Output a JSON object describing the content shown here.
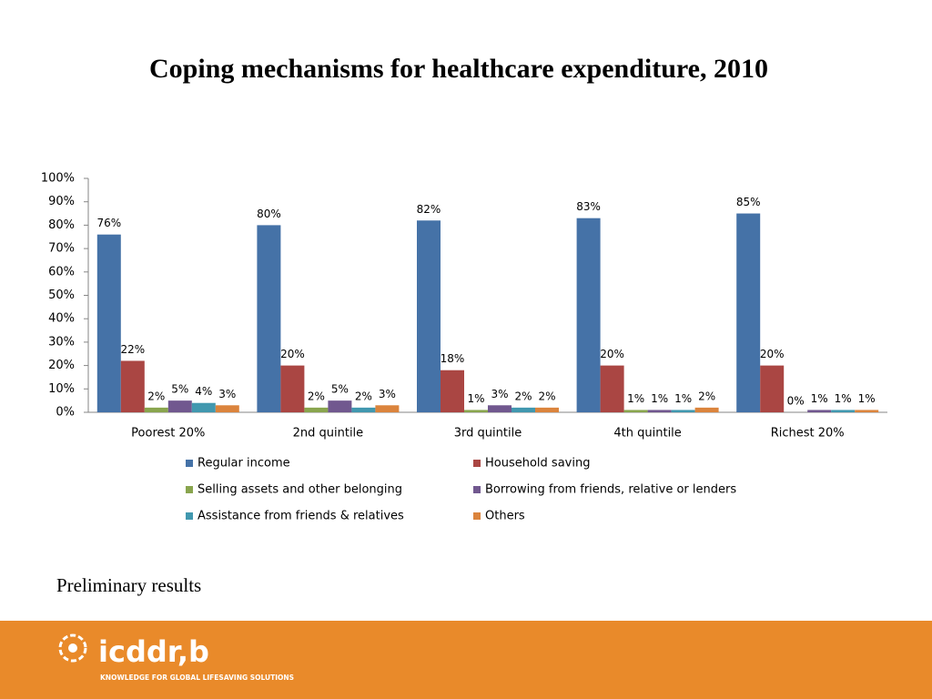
{
  "chart_data": {
    "type": "bar",
    "title": "Coping mechanisms for healthcare expenditure, 2010",
    "categories": [
      "Poorest 20%",
      "2nd quintile",
      "3rd quintile",
      "4th quintile",
      "Richest 20%"
    ],
    "series": [
      {
        "name": "Regular income",
        "color": "#4572a7",
        "values": [
          76,
          80,
          82,
          83,
          85
        ],
        "value_labels": [
          "76%",
          "80%",
          "82%",
          "83%",
          "85%"
        ]
      },
      {
        "name": "Household saving",
        "color": "#aa4643",
        "values": [
          22,
          20,
          18,
          20,
          20
        ],
        "value_labels": [
          "22%",
          "20%",
          "18%",
          "20%",
          "20%"
        ]
      },
      {
        "name": "Selling assets and other belonging",
        "color": "#89a54e",
        "values": [
          2,
          2,
          1,
          1,
          0
        ],
        "value_labels": [
          "2%",
          "2%",
          "1%",
          "1%",
          "0%"
        ]
      },
      {
        "name": "Borrowing from friends, relative or lenders",
        "color": "#71588f",
        "values": [
          5,
          5,
          3,
          1,
          1
        ],
        "value_labels": [
          "5%",
          "5%",
          "3%",
          "1%",
          "1%"
        ]
      },
      {
        "name": "Assistance from friends & relatives",
        "color": "#4198af",
        "values": [
          4,
          2,
          2,
          1,
          1
        ],
        "value_labels": [
          "4%",
          "2%",
          "2%",
          "1%",
          "1%"
        ]
      },
      {
        "name": "Others",
        "color": "#db843d",
        "values": [
          3,
          3,
          2,
          2,
          1
        ],
        "value_labels": [
          "3%",
          "3%",
          "2%",
          "2%",
          "1%"
        ]
      }
    ],
    "ylim": [
      0,
      100
    ],
    "yticks": [
      {
        "value": 0,
        "label": "0%"
      },
      {
        "value": 10,
        "label": "10%"
      },
      {
        "value": 20,
        "label": "20%"
      },
      {
        "value": 30,
        "label": "30%"
      },
      {
        "value": 40,
        "label": "40%"
      },
      {
        "value": 50,
        "label": "50%"
      },
      {
        "value": 60,
        "label": "60%"
      },
      {
        "value": 70,
        "label": "70%"
      },
      {
        "value": 80,
        "label": "80%"
      },
      {
        "value": 90,
        "label": "90%"
      },
      {
        "value": 100,
        "label": "100%"
      }
    ],
    "grid": false,
    "legend": "bottom"
  },
  "note": "Preliminary results",
  "footer": {
    "logo": "icddr,b",
    "tagline": "KNOWLEDGE FOR GLOBAL LIFESAVING SOLUTIONS"
  }
}
